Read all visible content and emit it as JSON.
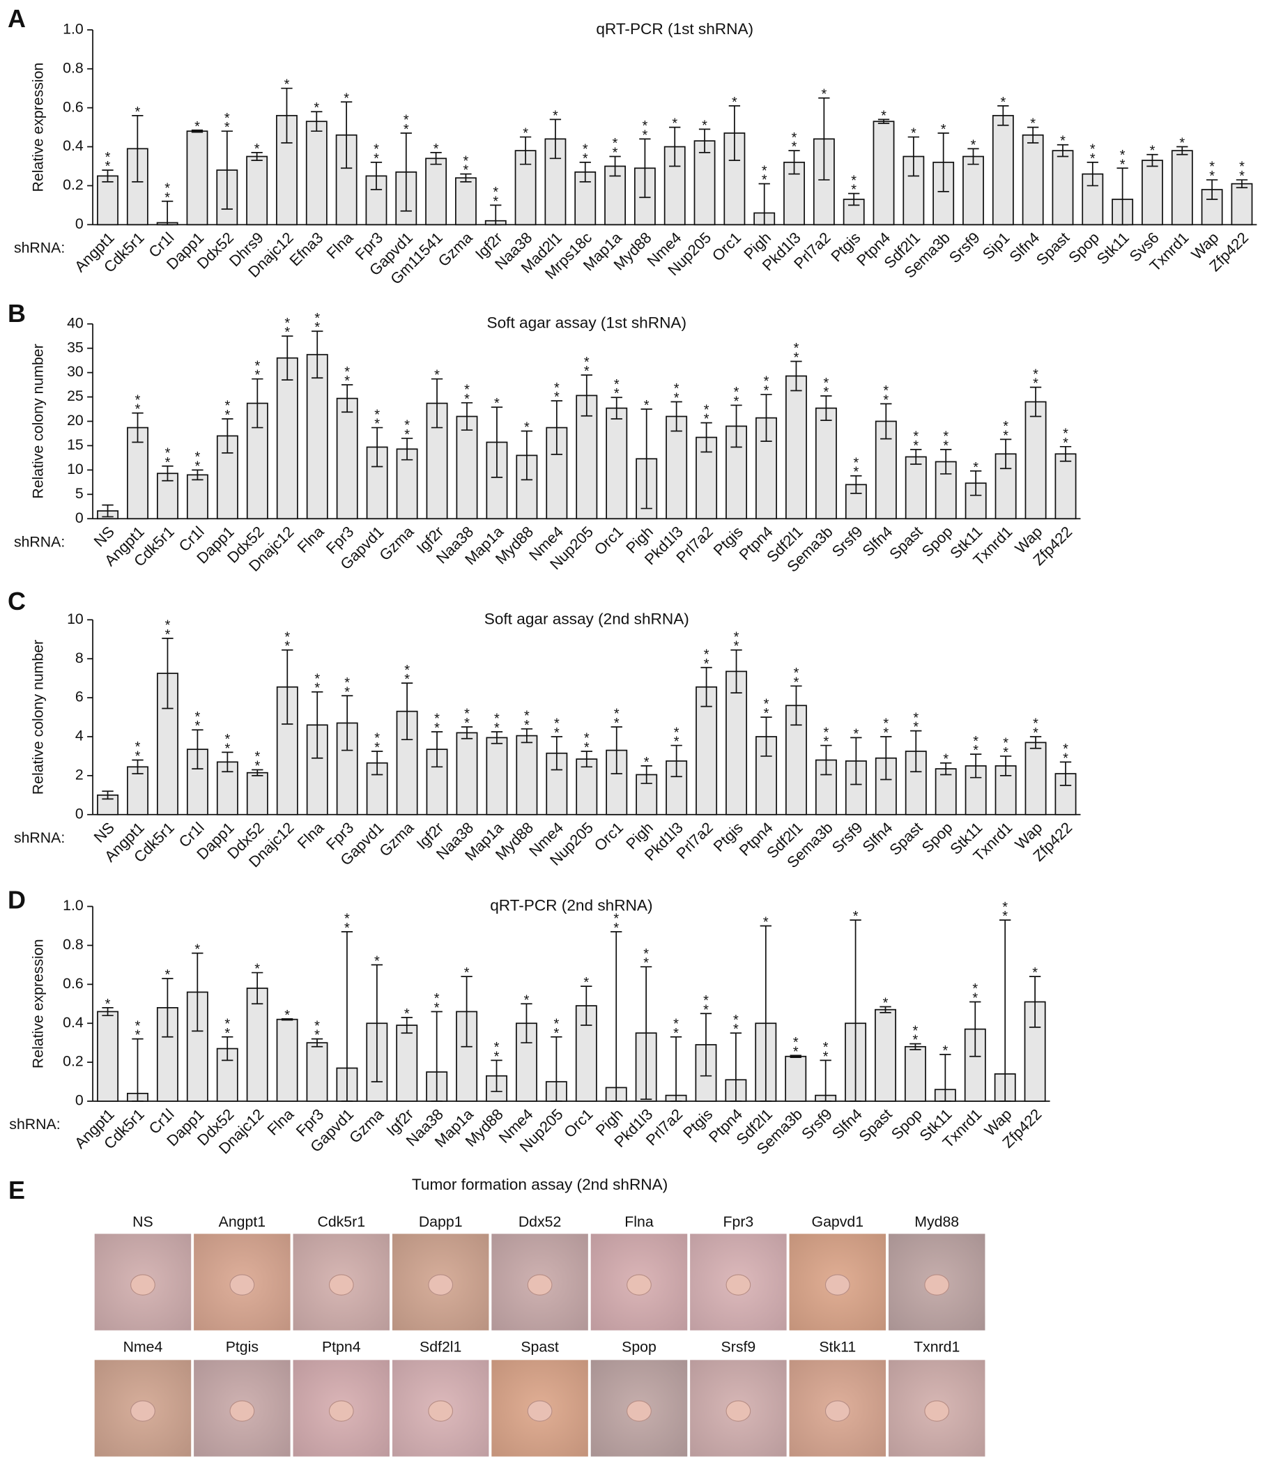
{
  "chart_data": [
    {
      "type": "bar",
      "panel": "A",
      "title": "qRT-PCR (1st shRNA)",
      "y_label": "Relative expression",
      "x_label": "shRNA:",
      "color": "#e6e6e6",
      "categories": [
        "Angpt1",
        "Cdk5r1",
        "Cr1l",
        "Dapp1",
        "Ddx52",
        "Dhrs9",
        "Dnajc12",
        "Efna3",
        "Flna",
        "Fpr3",
        "Gapvd1",
        "Gm11541",
        "Gzma",
        "Igf2r",
        "Naa38",
        "Mad2l1",
        "Mrps18c",
        "Map1a",
        "Myd88",
        "Nme4",
        "Nup205",
        "Orc1",
        "Pigh",
        "Pkd1l3",
        "Prl7a2",
        "Ptgis",
        "Ptpn4",
        "Sdf2l1",
        "Sema3b",
        "Srsf9",
        "Sip1",
        "Slfn4",
        "Spast",
        "Spop",
        "Stk11",
        "Svs6",
        "Txnrd1",
        "Wap",
        "Zfp422"
      ],
      "values": [
        0.25,
        0.39,
        0.01,
        0.48,
        0.28,
        0.35,
        0.56,
        0.53,
        0.46,
        0.25,
        0.27,
        0.34,
        0.24,
        0.02,
        0.38,
        0.44,
        0.27,
        0.3,
        0.29,
        0.4,
        0.43,
        0.47,
        0.06,
        0.32,
        0.44,
        0.13,
        0.53,
        0.35,
        0.32,
        0.35,
        0.56,
        0.46,
        0.38,
        0.26,
        0.13,
        0.33,
        0.38,
        0.18,
        0.21
      ],
      "errors": [
        0.03,
        0.17,
        0.11,
        0.005,
        0.2,
        0.02,
        0.14,
        0.05,
        0.17,
        0.07,
        0.2,
        0.03,
        0.02,
        0.08,
        0.07,
        0.1,
        0.05,
        0.05,
        0.15,
        0.1,
        0.06,
        0.14,
        0.15,
        0.06,
        0.21,
        0.03,
        0.01,
        0.1,
        0.15,
        0.04,
        0.05,
        0.04,
        0.03,
        0.06,
        0.16,
        0.03,
        0.02,
        0.05,
        0.02
      ],
      "stars": [
        "**",
        "*",
        "**",
        "*",
        "**",
        "*",
        "*",
        "*",
        "*",
        "**",
        "**",
        "*",
        "**",
        "**",
        "*",
        "*",
        "**",
        "**",
        "**",
        "*",
        "*",
        "*",
        "**",
        "**",
        "*",
        "**",
        "*",
        "*",
        "*",
        "*",
        "*",
        "*",
        "*",
        "**",
        "**",
        "*",
        "*",
        "**",
        "**"
      ],
      "ylim": [
        0,
        1
      ],
      "yticks": [
        0,
        0.2,
        0.4,
        0.6,
        0.8,
        {
          "value": 1,
          "label": "1.0"
        }
      ]
    },
    {
      "type": "bar",
      "panel": "B",
      "title": "Soft agar assay (1st shRNA)",
      "y_label": "Relative colony number",
      "x_label": "shRNA:",
      "color": "#e6e6e6",
      "categories": [
        "NS",
        "Angpt1",
        "Cdk5r1",
        "Cr1l",
        "Dapp1",
        "Ddx52",
        "Dnajc12",
        "Flna",
        "Fpr3",
        "Gapvd1",
        "Gzma",
        "Igf2r",
        "Naa38",
        "Map1a",
        "Myd88",
        "Nme4",
        "Nup205",
        "Orc1",
        "Pigh",
        "Pkd1l3",
        "Prl7a2",
        "Ptgis",
        "Ptpn4",
        "Sdf2l1",
        "Sema3b",
        "Srsf9",
        "Slfn4",
        "Spast",
        "Spop",
        "Stk11",
        "Txnrd1",
        "Wap",
        "Zfp422"
      ],
      "values": [
        1.6,
        18.7,
        9.3,
        9,
        17,
        23.7,
        33,
        33.7,
        24.7,
        14.7,
        14.3,
        23.7,
        21,
        15.7,
        13,
        18.7,
        25.3,
        22.7,
        12.3,
        21,
        16.7,
        19,
        20.7,
        29.3,
        22.7,
        7,
        20,
        12.7,
        11.7,
        7.3,
        13.3,
        24,
        13.3
      ],
      "errors": [
        1.2,
        3,
        1.5,
        1,
        3.5,
        5,
        4.5,
        4.8,
        2.8,
        4,
        2.2,
        5,
        2.8,
        7.2,
        5,
        5.5,
        4.2,
        2.2,
        10.2,
        3,
        3,
        4.3,
        4.8,
        3,
        2.5,
        1.8,
        3.6,
        1.5,
        2.5,
        2.5,
        3,
        3,
        1.5
      ],
      "stars": [
        null,
        "**",
        "**",
        "**",
        "**",
        "**",
        "**",
        "**",
        "**",
        "**",
        "**",
        "*",
        "**",
        "*",
        "*",
        "**",
        "**",
        "**",
        "*",
        "**",
        "**",
        "**",
        "**",
        "**",
        "**",
        "**",
        "**",
        "**",
        "**",
        "*",
        "**",
        "**",
        "**"
      ],
      "ylim": [
        0,
        40
      ],
      "yticks": [
        0,
        5,
        10,
        15,
        20,
        25,
        30,
        35,
        40
      ]
    },
    {
      "type": "bar",
      "panel": "C",
      "title": "Soft agar assay (2nd shRNA)",
      "y_label": "Relative colony number",
      "x_label": "shRNA:",
      "color": "#e6e6e6",
      "categories": [
        "NS",
        "Angpt1",
        "Cdk5r1",
        "Cr1l",
        "Dapp1",
        "Ddx52",
        "Dnajc12",
        "Flna",
        "Fpr3",
        "Gapvd1",
        "Gzma",
        "Igf2r",
        "Naa38",
        "Map1a",
        "Myd88",
        "Nme4",
        "Nup205",
        "Orc1",
        "Pigh",
        "Pkd1l3",
        "Prl7a2",
        "Ptgis",
        "Ptpn4",
        "Sdf2l1",
        "Sema3b",
        "Srsf9",
        "Slfn4",
        "Spast",
        "Spop",
        "Stk11",
        "Txnrd1",
        "Wap",
        "Zfp422"
      ],
      "values": [
        1,
        2.45,
        7.25,
        3.35,
        2.7,
        2.15,
        6.55,
        4.6,
        4.7,
        2.65,
        5.3,
        3.35,
        4.2,
        3.95,
        4.05,
        3.15,
        2.85,
        3.3,
        2.05,
        2.75,
        6.55,
        7.35,
        4,
        5.6,
        2.8,
        2.75,
        2.9,
        3.25,
        2.35,
        2.5,
        2.5,
        3.7,
        2.1
      ],
      "errors": [
        0.2,
        0.35,
        1.8,
        1,
        0.5,
        0.15,
        1.9,
        1.7,
        1.4,
        0.6,
        1.45,
        0.9,
        0.3,
        0.3,
        0.35,
        0.85,
        0.4,
        1.2,
        0.45,
        0.8,
        1,
        1.1,
        1,
        1,
        0.75,
        1.2,
        1.1,
        1.05,
        0.3,
        0.6,
        0.5,
        0.3,
        0.6
      ],
      "stars": [
        null,
        "**",
        "**",
        "**",
        "**",
        "**",
        "**",
        "**",
        "**",
        "**",
        "**",
        "**",
        "**",
        "**",
        "**",
        "**",
        "**",
        "**",
        "*",
        "**",
        "**",
        "**",
        "**",
        "**",
        "**",
        "*",
        "**",
        "**",
        "*",
        "**",
        "**",
        "**",
        "**"
      ],
      "ylim": [
        0,
        10
      ],
      "yticks": [
        0,
        2,
        4,
        6,
        8,
        10
      ]
    },
    {
      "type": "bar",
      "panel": "D",
      "title": "qRT-PCR (2nd shRNA)",
      "y_label": "Relative expression",
      "x_label": "shRNA:",
      "color": "#e6e6e6",
      "categories": [
        "Angpt1",
        "Cdk5r1",
        "Cr1l",
        "Dapp1",
        "Ddx52",
        "Dnajc12",
        "Flna",
        "Fpr3",
        "Gapvd1",
        "Gzma",
        "Igf2r",
        "Naa38",
        "Map1a",
        "Myd88",
        "Nme4",
        "Nup205",
        "Orc1",
        "Pigh",
        "Pkd1l3",
        "Prl7a2",
        "Ptgis",
        "Ptpn4",
        "Sdf2l1",
        "Sema3b",
        "Srsf9",
        "Slfn4",
        "Spast",
        "Spop",
        "Stk11",
        "Txnrd1",
        "Wap",
        "Zfp422"
      ],
      "values": [
        0.46,
        0.04,
        0.48,
        0.56,
        0.27,
        0.58,
        0.42,
        0.3,
        0.17,
        0.4,
        0.39,
        0.15,
        0.46,
        0.13,
        0.4,
        0.1,
        0.49,
        0.07,
        0.35,
        0.03,
        0.29,
        0.11,
        0.4,
        0.23,
        0.03,
        0.4,
        0.47,
        0.28,
        0.06,
        0.37,
        0.14,
        0.51
      ],
      "errors": [
        0.02,
        0.28,
        0.15,
        0.2,
        0.06,
        0.08,
        0.003,
        0.02,
        0.7,
        0.3,
        0.04,
        0.31,
        0.18,
        0.08,
        0.1,
        0.23,
        0.1,
        0.8,
        0.34,
        0.3,
        0.16,
        0.24,
        0.5,
        0.005,
        0.18,
        0.53,
        0.015,
        0.015,
        0.18,
        0.14,
        0.79,
        0.13
      ],
      "stars": [
        "*",
        "**",
        "*",
        "*",
        "**",
        "*",
        "*",
        "**",
        "**",
        "*",
        "*",
        "**",
        "*",
        "**",
        "*",
        "**",
        "*",
        "**",
        "**",
        "**",
        "**",
        "**",
        "*",
        "**",
        "**",
        "*",
        "*",
        "**",
        "*",
        "**",
        "**",
        "*"
      ],
      "ylim": [
        0,
        1
      ],
      "yticks": [
        0,
        0.2,
        0.4,
        0.6,
        0.8,
        {
          "value": 1,
          "label": "1.0"
        }
      ]
    }
  ],
  "panel_e": {
    "panel": "E",
    "title": "Tumor formation assay (2nd shRNA)",
    "rows": [
      [
        "NS",
        "Angpt1",
        "Cdk5r1",
        "Dapp1",
        "Ddx52",
        "Flna",
        "Fpr3",
        "Gapvd1",
        "Myd88"
      ],
      [
        "Nme4",
        "Ptgis",
        "Ptpn4",
        "Sdf2l1",
        "Spast",
        "Spop",
        "Srsf9",
        "Stk11",
        "Txnrd1"
      ]
    ]
  }
}
